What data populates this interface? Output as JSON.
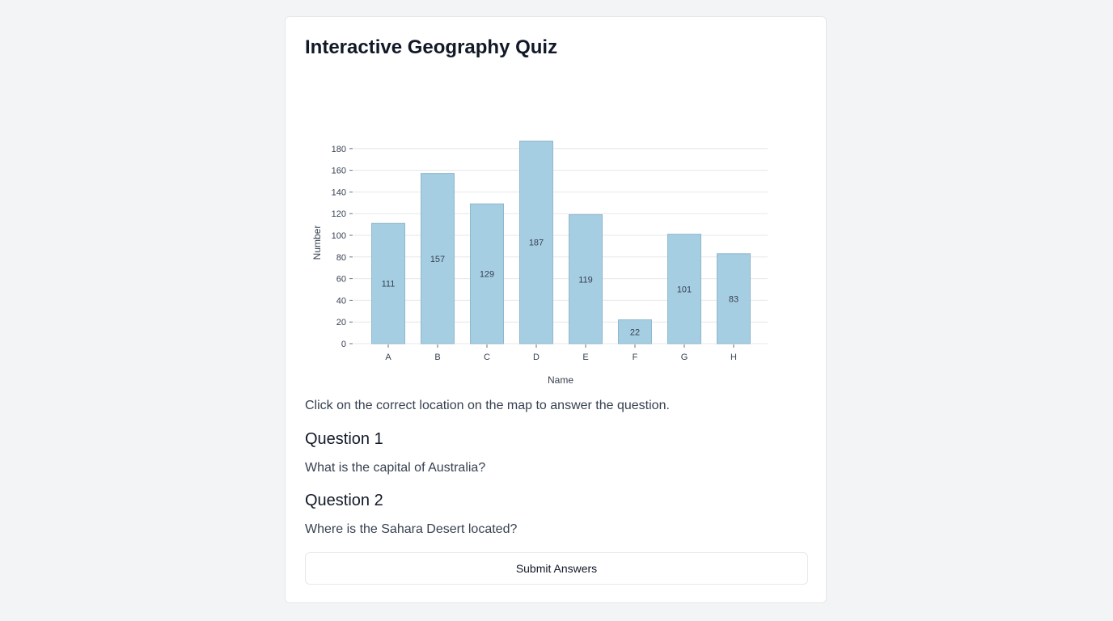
{
  "page": {
    "title": "Interactive Geography Quiz",
    "instructions": "Click on the correct location on the map to answer the question.",
    "questions": [
      {
        "title": "Question 1",
        "text": "What is the capital of Australia?"
      },
      {
        "title": "Question 2",
        "text": "Where is the Sahara Desert located?"
      }
    ],
    "submit_label": "Submit Answers"
  },
  "colors": {
    "bar_fill": "#a6cee3",
    "bar_stroke": "#8fb8cc",
    "grid": "#e5e7eb"
  },
  "chart_data": {
    "type": "bar",
    "categories": [
      "A",
      "B",
      "C",
      "D",
      "E",
      "F",
      "G",
      "H"
    ],
    "values": [
      111,
      157,
      129,
      187,
      119,
      22,
      101,
      83
    ],
    "xlabel": "Name",
    "ylabel": "Number",
    "ylim": [
      0,
      180
    ],
    "yticks": [
      0,
      20,
      40,
      60,
      80,
      100,
      120,
      140,
      160,
      180
    ],
    "grid": true
  }
}
